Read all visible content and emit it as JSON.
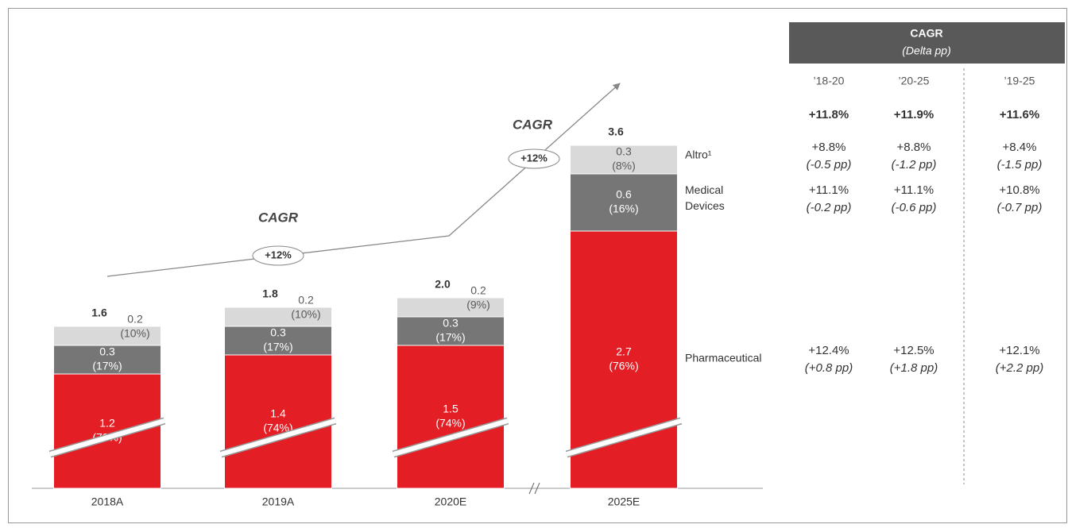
{
  "chart_data": {
    "type": "bar",
    "stacked": true,
    "categories": [
      "2018A",
      "2019A",
      "2020E",
      "2025E"
    ],
    "series": [
      {
        "name": "Pharmaceutical",
        "color": "#e31e24",
        "text_color": "#ffffff",
        "values": [
          1.2,
          1.4,
          1.5,
          2.7
        ],
        "shares": [
          73,
          74,
          74,
          76
        ],
        "share_labels": [
          "(73%)",
          "(74%)",
          "(74%)",
          "(76%)"
        ]
      },
      {
        "name": "Medical Devices",
        "color": "#767676",
        "text_color": "#ffffff",
        "values": [
          0.3,
          0.3,
          0.3,
          0.6
        ],
        "shares": [
          17,
          17,
          17,
          16
        ],
        "share_labels": [
          "(17%)",
          "(17%)",
          "(17%)",
          "(16%)"
        ]
      },
      {
        "name": "Altro¹",
        "color": "#d9d9d9",
        "text_color": "#595959",
        "values": [
          0.2,
          0.2,
          0.2,
          0.3
        ],
        "shares": [
          10,
          10,
          9,
          8
        ],
        "share_labels": [
          "(10%)",
          "(10%)",
          "(9%)",
          "(8%)"
        ]
      }
    ],
    "totals": [
      1.6,
      1.8,
      2.0,
      3.6
    ],
    "total_labels": [
      "1.6",
      "1.8",
      "2.0",
      "3.6"
    ],
    "annotations": [
      {
        "title": "CAGR",
        "label": "+12%"
      },
      {
        "title": "CAGR",
        "label": "+12%"
      }
    ]
  },
  "table": {
    "title": "CAGR",
    "subtitle": "(Delta pp)",
    "columns": [
      "’18-20",
      "’20-25",
      "’19-25"
    ],
    "rows": [
      {
        "values": [
          "+11.8%",
          "+11.9%",
          "+11.6%"
        ]
      },
      {
        "values": [
          "+8.8%",
          "+8.8%",
          "+8.4%"
        ],
        "deltas": [
          "(-0.5 pp)",
          "(-1.2 pp)",
          "(-1.5 pp)"
        ]
      },
      {
        "values": [
          "+11.1%",
          "+11.1%",
          "+10.8%"
        ],
        "deltas": [
          "(-0.2 pp)",
          "(-0.6 pp)",
          "(-0.7 pp)"
        ]
      },
      {
        "values": [
          "+12.4%",
          "+12.5%",
          "+12.1%"
        ],
        "deltas": [
          "(+0.8 pp)",
          "(+1.8 pp)",
          "(+2.2 pp)"
        ]
      }
    ]
  }
}
